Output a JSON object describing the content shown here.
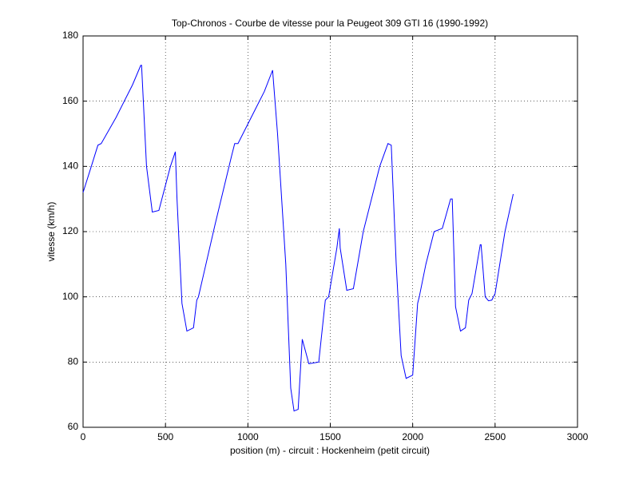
{
  "chart_data": {
    "type": "line",
    "title": "Top-Chronos - Courbe de vitesse pour la Peugeot 309 GTI 16 (1990-1992)",
    "xlabel": "position (m) - circuit : Hockenheim (petit circuit)",
    "ylabel": "vitesse (km/h)",
    "color": "#0000ff",
    "x": [
      0,
      50,
      90,
      110,
      200,
      300,
      350,
      355,
      385,
      420,
      460,
      530,
      560,
      570,
      600,
      630,
      670,
      690,
      700,
      800,
      900,
      920,
      940,
      1000,
      1100,
      1150,
      1180,
      1230,
      1260,
      1280,
      1305,
      1330,
      1370,
      1430,
      1470,
      1490,
      1540,
      1555,
      1560,
      1600,
      1640,
      1700,
      1800,
      1850,
      1870,
      1900,
      1930,
      1960,
      2000,
      2030,
      2040,
      2080,
      2130,
      2180,
      2230,
      2240,
      2260,
      2290,
      2320,
      2340,
      2360,
      2410,
      2415,
      2440,
      2460,
      2480,
      2500,
      2560,
      2610
    ],
    "values": [
      132,
      140,
      146.5,
      147,
      155,
      165,
      171,
      171,
      140,
      126,
      126.5,
      140,
      144.5,
      130,
      98,
      89.5,
      90.5,
      99,
      100,
      122,
      143,
      147,
      147,
      153,
      163,
      169.5,
      150,
      110,
      72,
      65,
      65.5,
      87,
      79.5,
      80,
      99,
      100,
      115,
      121,
      115,
      102,
      102.5,
      120,
      140,
      147,
      146.5,
      110,
      82,
      75,
      76,
      98,
      100,
      110,
      120,
      121,
      130,
      130,
      97,
      89.5,
      90.5,
      99,
      101,
      116,
      116,
      100,
      98.8,
      99,
      101,
      120,
      131.5
    ],
    "xlim": [
      0,
      3000
    ],
    "ylim": [
      60,
      180
    ],
    "xticks": [
      0,
      500,
      1000,
      1500,
      2000,
      2500,
      3000
    ],
    "yticks": [
      60,
      80,
      100,
      120,
      140,
      160,
      180
    ],
    "grid": true
  }
}
